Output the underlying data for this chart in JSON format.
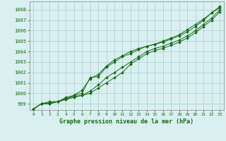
{
  "x": [
    0,
    1,
    2,
    3,
    4,
    5,
    6,
    7,
    8,
    9,
    10,
    11,
    12,
    13,
    14,
    15,
    16,
    17,
    18,
    19,
    20,
    21,
    22,
    23
  ],
  "series": [
    [
      998.5,
      999.0,
      999.0,
      999.2,
      999.5,
      999.7,
      999.8,
      1000.2,
      1000.8,
      1001.5,
      1002.0,
      1002.5,
      1003.0,
      1003.5,
      1004.0,
      1004.3,
      1004.5,
      1004.8,
      1005.1,
      1005.5,
      1006.0,
      1006.6,
      1007.2,
      1008.0
    ],
    [
      998.5,
      999.0,
      999.0,
      999.2,
      999.6,
      999.8,
      1000.0,
      1001.5,
      1001.6,
      1002.5,
      1003.0,
      1003.5,
      1003.8,
      1004.2,
      1004.5,
      1004.7,
      1004.9,
      1005.2,
      1005.5,
      1005.9,
      1006.4,
      1007.0,
      1007.7,
      1008.2
    ],
    [
      998.5,
      999.0,
      999.2,
      999.2,
      999.4,
      999.8,
      1000.3,
      1001.4,
      1001.8,
      1002.6,
      1003.2,
      1003.6,
      1004.0,
      1004.3,
      1004.5,
      1004.7,
      1005.0,
      1005.3,
      1005.6,
      1006.1,
      1006.6,
      1007.1,
      1007.7,
      1008.3
    ],
    [
      998.5,
      999.0,
      999.1,
      999.2,
      999.4,
      999.6,
      999.8,
      1000.0,
      1000.5,
      1001.0,
      1001.5,
      1002.0,
      1002.8,
      1003.3,
      1003.8,
      1004.1,
      1004.3,
      1004.6,
      1004.9,
      1005.3,
      1005.8,
      1006.4,
      1007.0,
      1007.8
    ]
  ],
  "line_color": "#1a6b1a",
  "marker_color": "#1a6b1a",
  "bg_color": "#d8f0f0",
  "grid_color": "#aacece",
  "title": "Graphe pression niveau de la mer (hPa)",
  "xlabel_ticks": [
    0,
    1,
    2,
    3,
    4,
    5,
    6,
    7,
    8,
    9,
    10,
    11,
    12,
    13,
    14,
    15,
    16,
    17,
    18,
    19,
    20,
    21,
    22,
    23
  ],
  "yticks": [
    999,
    1000,
    1001,
    1002,
    1003,
    1004,
    1005,
    1006,
    1007,
    1008
  ],
  "ylim": [
    998.4,
    1008.8
  ],
  "xlim": [
    -0.5,
    23.5
  ]
}
